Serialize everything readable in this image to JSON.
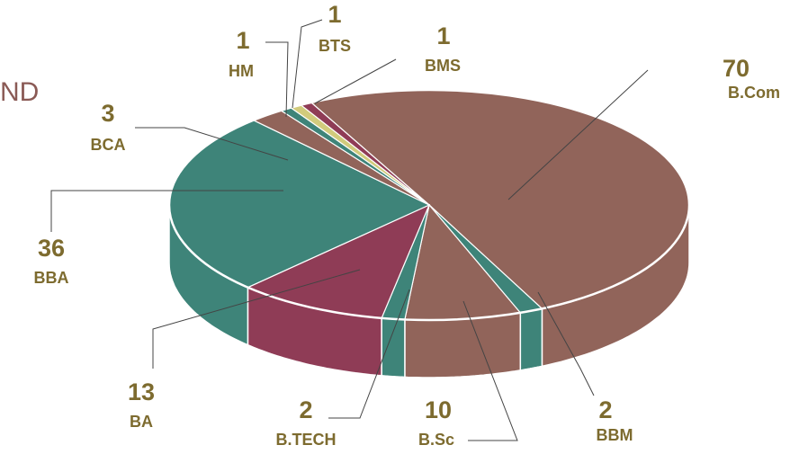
{
  "chart_data": {
    "type": "pie",
    "title": "ND",
    "categories": [
      "B.Com",
      "BBM",
      "B.Sc",
      "B.TECH",
      "BA",
      "BBA",
      "BCA",
      "HM",
      "BTS",
      "BMS"
    ],
    "values": [
      70,
      2,
      10,
      2,
      13,
      36,
      3,
      1,
      1,
      1
    ],
    "colors": [
      "#91645a",
      "#3e8479",
      "#91645a",
      "#3e8479",
      "#8f3c56",
      "#3e8479",
      "#91645a",
      "#3e8479",
      "#d1cb7c",
      "#8f3c56"
    ]
  }
}
